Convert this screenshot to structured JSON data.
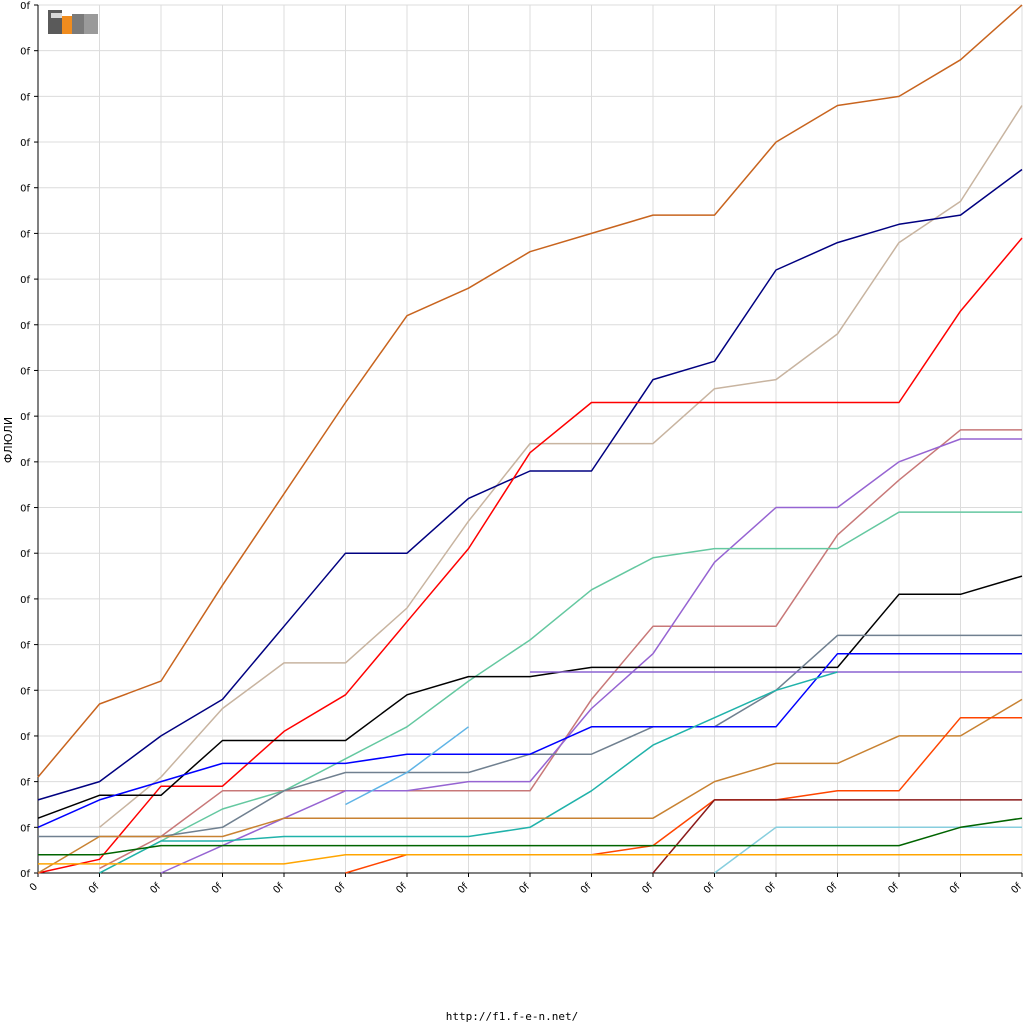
{
  "chart_data": {
    "type": "line",
    "ylabel": "ФЛЮЛИ",
    "x_tick_labels": [
      "0",
      "0f",
      "0f",
      "0f",
      "0f",
      "0f",
      "0f",
      "0f",
      "0f",
      "0f",
      "0f",
      "0f",
      "0f",
      "0f",
      "0f",
      "0f",
      "0f"
    ],
    "y_tick_labels": [
      "0f",
      "0f",
      "0f",
      "0f",
      "0f",
      "0f",
      "0f",
      "0f",
      "0f",
      "0f",
      "0f",
      "0f",
      "0f",
      "0f",
      "0f",
      "0f",
      "0f",
      "0f",
      "0f",
      "0f"
    ],
    "x": [
      0,
      1,
      2,
      3,
      4,
      5,
      6,
      7,
      8,
      9,
      10,
      11,
      12,
      13,
      14,
      15,
      16
    ],
    "xlim": [
      0,
      16
    ],
    "ylim": [
      0,
      19
    ],
    "grid": true,
    "series": [
      {
        "color": "#c8641e",
        "values": [
          2.1,
          3.7,
          4.2,
          6.3,
          8.3,
          10.3,
          12.2,
          12.8,
          13.6,
          14.0,
          14.4,
          14.4,
          16.0,
          16.8,
          17.0,
          17.8,
          19.0
        ]
      },
      {
        "color": "#c8b4a0",
        "values": [
          null,
          1.0,
          2.1,
          3.6,
          4.6,
          4.6,
          5.8,
          7.7,
          9.4,
          9.4,
          9.4,
          10.6,
          10.8,
          11.8,
          13.8,
          14.7,
          16.8
        ]
      },
      {
        "color": "#000080",
        "values": [
          1.6,
          2.0,
          3.0,
          3.8,
          5.4,
          7.0,
          7.0,
          8.2,
          8.8,
          8.8,
          10.8,
          11.2,
          13.2,
          13.8,
          14.2,
          14.4,
          15.4
        ]
      },
      {
        "color": "#ff0000",
        "values": [
          0,
          0.3,
          1.9,
          1.9,
          3.1,
          3.9,
          5.5,
          7.1,
          9.2,
          10.3,
          10.3,
          10.3,
          10.3,
          10.3,
          10.3,
          12.3,
          13.9
        ]
      },
      {
        "color": "#c87878",
        "values": [
          null,
          0.1,
          0.8,
          1.8,
          1.8,
          1.8,
          1.8,
          1.8,
          1.8,
          3.8,
          5.4,
          5.4,
          5.4,
          7.4,
          8.6,
          9.7,
          9.7
        ]
      },
      {
        "color": "#9664d2",
        "values": [
          null,
          null,
          0,
          0.6,
          1.2,
          1.8,
          1.8,
          2.0,
          2.0,
          3.6,
          4.8,
          6.8,
          8.0,
          8.0,
          9.0,
          9.5,
          9.5
        ]
      },
      {
        "color": "#64c8a0",
        "values": [
          null,
          0,
          0.7,
          1.4,
          1.8,
          2.5,
          3.2,
          4.2,
          5.1,
          6.2,
          6.9,
          7.1,
          7.1,
          7.1,
          7.9,
          7.9,
          7.9
        ]
      },
      {
        "color": "#000000",
        "values": [
          1.2,
          1.7,
          1.7,
          2.9,
          2.9,
          2.9,
          3.9,
          4.3,
          4.3,
          4.5,
          4.5,
          4.5,
          4.5,
          4.5,
          6.1,
          6.1,
          6.5
        ]
      },
      {
        "color": "#708090",
        "values": [
          0.8,
          0.8,
          0.8,
          1.0,
          1.8,
          2.2,
          2.2,
          2.2,
          2.6,
          2.6,
          3.2,
          3.2,
          4.0,
          5.2,
          5.2,
          5.2,
          5.2
        ]
      },
      {
        "color": "#0000ff",
        "values": [
          1.0,
          1.6,
          2.0,
          2.4,
          2.4,
          2.4,
          2.6,
          2.6,
          2.6,
          3.2,
          3.2,
          3.2,
          3.2,
          4.8,
          4.8,
          4.8,
          4.8
        ]
      },
      {
        "color": "#8c64d2",
        "values": [
          null,
          null,
          null,
          null,
          null,
          null,
          null,
          null,
          4.4,
          4.4,
          4.4,
          4.4,
          4.4,
          4.4,
          4.4,
          4.4,
          4.4
        ]
      },
      {
        "color": "#20b2aa",
        "values": [
          null,
          0,
          0.7,
          0.7,
          0.8,
          0.8,
          0.8,
          0.8,
          1.0,
          1.8,
          2.8,
          3.4,
          4.0,
          4.4,
          null,
          null,
          null
        ]
      },
      {
        "color": "#5fb4e6",
        "values": [
          null,
          null,
          null,
          null,
          null,
          1.5,
          2.2,
          3.2,
          null,
          null,
          null,
          null,
          null,
          null,
          null,
          null,
          null
        ]
      },
      {
        "color": "#c88232",
        "values": [
          0,
          0.8,
          0.8,
          0.8,
          1.2,
          1.2,
          1.2,
          1.2,
          1.2,
          1.2,
          1.2,
          2.0,
          2.4,
          2.4,
          3.0,
          3.0,
          3.8
        ]
      },
      {
        "color": "#ff4500",
        "values": [
          null,
          null,
          null,
          null,
          null,
          0,
          0.4,
          0.4,
          0.4,
          0.4,
          0.6,
          1.6,
          1.6,
          1.8,
          1.8,
          3.4,
          3.4
        ]
      },
      {
        "color": "#8b1a1a",
        "values": [
          null,
          null,
          null,
          null,
          null,
          null,
          null,
          null,
          null,
          null,
          0,
          1.6,
          1.6,
          1.6,
          1.6,
          1.6,
          1.6
        ]
      },
      {
        "color": "#87cede",
        "values": [
          null,
          null,
          null,
          null,
          null,
          null,
          null,
          null,
          null,
          null,
          null,
          0,
          1.0,
          1.0,
          1.0,
          1.0,
          1.0
        ]
      },
      {
        "color": "#006400",
        "values": [
          0.4,
          0.4,
          0.6,
          0.6,
          0.6,
          0.6,
          0.6,
          0.6,
          0.6,
          0.6,
          0.6,
          0.6,
          0.6,
          0.6,
          0.6,
          1.0,
          1.2
        ]
      },
      {
        "color": "#ffa500",
        "values": [
          0.2,
          0.2,
          0.2,
          0.2,
          0.2,
          0.4,
          0.4,
          0.4,
          0.4,
          0.4,
          0.4,
          0.4,
          0.4,
          0.4,
          0.4,
          0.4,
          0.4
        ]
      }
    ]
  },
  "footer": {
    "url": "http://f1.f-e-n.net/"
  },
  "logo": {
    "text": "F1EN"
  }
}
